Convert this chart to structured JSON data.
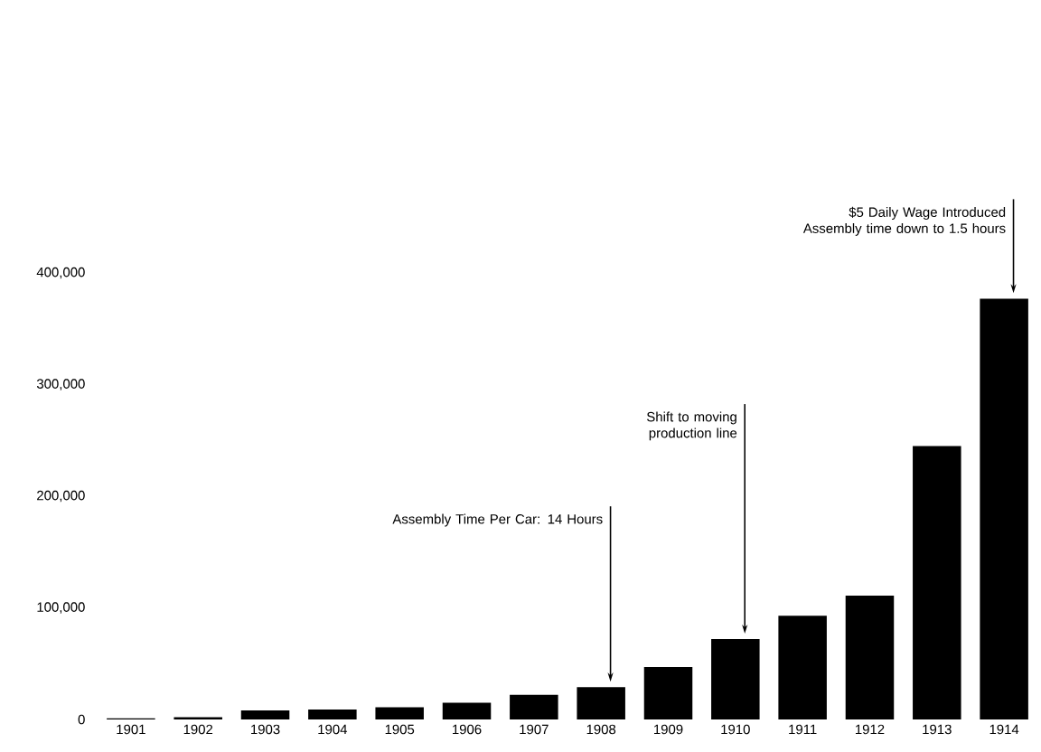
{
  "chart_data": {
    "type": "bar",
    "categories": [
      "1901",
      "1902",
      "1903",
      "1904",
      "1905",
      "1906",
      "1907",
      "1908",
      "1909",
      "1910",
      "1911",
      "1912",
      "1913",
      "1914"
    ],
    "values": [
      1000,
      2000,
      8000,
      9000,
      11000,
      15000,
      22000,
      29000,
      47000,
      72000,
      93000,
      111000,
      245000,
      377000
    ],
    "color": "#000000",
    "ylim": [
      0,
      400000
    ],
    "yticks": [
      {
        "value": 0,
        "label": "0"
      },
      {
        "value": 100000,
        "label": "100,000"
      },
      {
        "value": 200000,
        "label": "200,000"
      },
      {
        "value": 300000,
        "label": "300,000"
      },
      {
        "value": 400000,
        "label": "400,000"
      }
    ],
    "annotations": [
      {
        "text": "Assembly Time Per Car: 14 Hours",
        "x": "1908",
        "y": 29000
      },
      {
        "text": "Shift to moving production line",
        "x": "1910",
        "y": 72000
      },
      {
        "text": "$5 Daily Wage Introduced Assembly time down to 1.5 hours",
        "x": "1914",
        "y": 377000
      }
    ]
  }
}
